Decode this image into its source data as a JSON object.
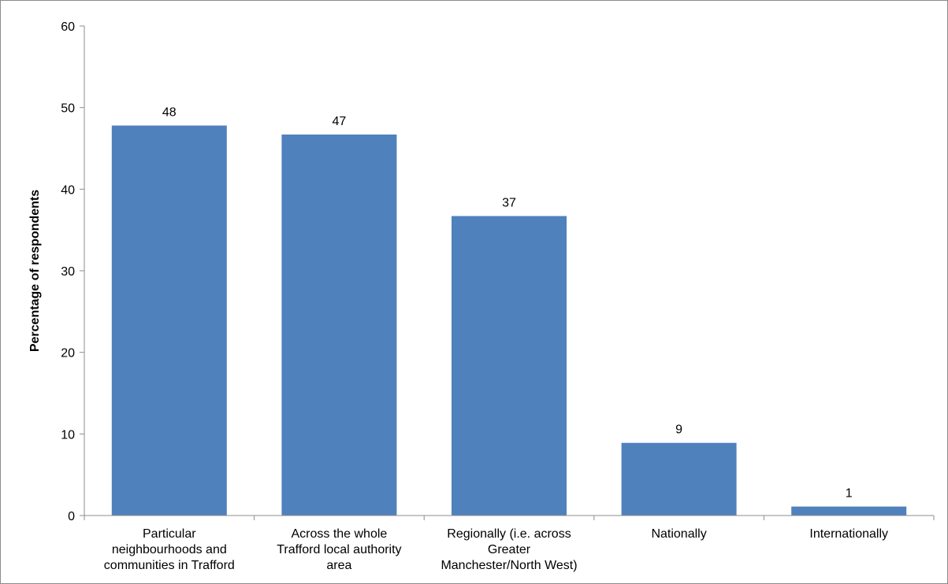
{
  "chart_data": {
    "type": "bar",
    "categories": [
      [
        "Particular",
        "neighbourhoods and",
        "communities in Trafford"
      ],
      [
        "Across the whole",
        "Trafford local authority",
        "area"
      ],
      [
        "Regionally (i.e. across",
        "Greater",
        "Manchester/North West)"
      ],
      [
        "Nationally"
      ],
      [
        "Internationally"
      ]
    ],
    "values": [
      47.8,
      46.7,
      36.7,
      8.9,
      1.1
    ],
    "data_labels": [
      "48",
      "47",
      "37",
      "9",
      "1"
    ],
    "title": "",
    "xlabel": "",
    "ylabel": "Percentage of respondents",
    "ylim": [
      0,
      60
    ],
    "yticks": [
      0,
      10,
      20,
      30,
      40,
      50,
      60
    ],
    "grid": false,
    "legend": "none",
    "bar_color": "#4f81bd",
    "axis_color": "#8c8c8c"
  }
}
